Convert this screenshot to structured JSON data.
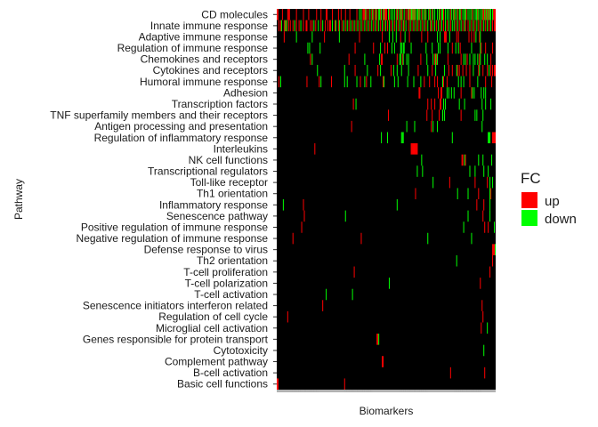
{
  "chart_data": {
    "type": "heatmap",
    "xlabel": "Biomarkers",
    "ylabel": "Pathway",
    "background_color": "#000000",
    "legend": {
      "title": "FC",
      "position": "right",
      "entries": [
        {
          "label": "up",
          "color": "#FF0000"
        },
        {
          "label": "down",
          "color": "#00FF00"
        }
      ]
    },
    "n_biomarkers": 250,
    "pathways": [
      "CD molecules",
      "Innate immune response",
      "Adaptive immune response",
      "Regulation of immune response",
      "Chemokines and receptors",
      "Cytokines and receptors",
      "Humoral immune response",
      "Adhesion",
      "Transcription factors",
      "TNF superfamily members and their receptors",
      "Antigen processing and presentation",
      "Regulation of inflammatory response",
      "Interleukins",
      "NK cell functions",
      "Transcriptional regulators",
      "Toll-like receptor",
      "Th1 orientation",
      "Inflammatory response",
      "Senescence pathway",
      "Positive regulation of immune response",
      "Negative regulation of immune response",
      "Defense response to virus",
      "Th2 orientation",
      "T-cell proliferation",
      "T-cell polarization",
      "T-cell activation",
      "Senescence initiators interferon related",
      "Regulation of cell cycle",
      "Microglial cell activation",
      "Genes responsible for protein transport",
      "Cytotoxicity",
      "Complement pathway",
      "B-cell activation",
      "Basic cell functions"
    ],
    "cells": [
      {
        "pathway": "CD molecules",
        "up": [
          0,
          1,
          6,
          12,
          13,
          14,
          22,
          30,
          36,
          45,
          50,
          56,
          57,
          63,
          70,
          73,
          78,
          83,
          91,
          98,
          99,
          100,
          102,
          104,
          108,
          110,
          112,
          114,
          118,
          121,
          123,
          124,
          125,
          128,
          136,
          138,
          141,
          143,
          147,
          149,
          151,
          152,
          155,
          157,
          162,
          165,
          169,
          174,
          177,
          186,
          190,
          198,
          202,
          206,
          210,
          216,
          223,
          229,
          235,
          236,
          238,
          240,
          242,
          247,
          248,
          249
        ],
        "down": [
          94,
          96,
          101,
          106,
          109,
          113,
          116,
          117,
          119,
          122,
          127,
          130,
          132,
          134,
          137,
          140,
          142,
          145,
          150,
          153,
          154,
          156,
          158,
          160,
          161,
          163,
          166,
          168,
          170,
          173,
          175,
          178,
          180,
          183,
          185,
          188,
          189,
          192,
          194,
          196,
          199,
          201,
          203,
          205,
          208,
          209,
          212,
          214,
          215,
          218,
          220,
          222,
          225,
          227,
          228,
          230,
          232,
          234,
          237,
          239,
          241,
          243,
          244,
          246
        ]
      },
      {
        "pathway": "Innate immune response",
        "up": [
          2,
          4,
          8,
          10,
          13,
          15,
          18,
          22,
          25,
          30,
          33,
          34,
          38,
          40,
          44,
          50,
          55,
          58,
          60,
          61,
          66,
          70,
          74,
          78,
          82,
          86,
          90,
          94,
          98,
          102,
          106,
          110,
          114,
          118,
          122,
          126,
          130,
          134,
          138,
          142,
          145,
          150,
          154,
          158,
          162,
          166,
          170,
          175,
          178,
          182,
          186,
          190,
          194,
          198,
          204,
          208,
          212,
          215,
          218,
          222,
          226,
          230,
          234,
          238,
          242,
          246,
          248,
          249
        ],
        "down": [
          5,
          9,
          11,
          20,
          27,
          42,
          47,
          52,
          63,
          67,
          71,
          76,
          80,
          84,
          88,
          92,
          96,
          100,
          104,
          108,
          112,
          116,
          120,
          124,
          128,
          132,
          136,
          140,
          144,
          147,
          152,
          156,
          160,
          164,
          168,
          172,
          176,
          180,
          184,
          188,
          192,
          196,
          200,
          202,
          206,
          210,
          214,
          220,
          224,
          228,
          232,
          236,
          240,
          244
        ]
      },
      {
        "pathway": "Adaptive immune response",
        "up": [
          8,
          54,
          94,
          120,
          141,
          151,
          165,
          172,
          191,
          192,
          193,
          205,
          207,
          219,
          222,
          225,
          231
        ],
        "down": [
          22,
          40,
          71,
          128,
          132,
          136,
          146,
          183,
          186,
          197,
          227,
          232
        ]
      },
      {
        "pathway": "Regulation of immune response",
        "up": [
          89,
          110,
          123,
          126,
          200,
          209,
          233,
          238,
          246
        ],
        "down": [
          35,
          37,
          49,
          118,
          131,
          134,
          141,
          142,
          144,
          145,
          153,
          170,
          177,
          184,
          186,
          195,
          204,
          207,
          222,
          232
        ]
      },
      {
        "pathway": "Chemokines and receptors",
        "up": [
          38,
          82,
          119,
          120,
          137,
          143,
          164,
          180,
          182,
          195,
          210,
          217,
          231,
          244
        ],
        "down": [
          40,
          100,
          117,
          140,
          141,
          144,
          148,
          150,
          171,
          178,
          181,
          183,
          213,
          215,
          220,
          224,
          226,
          229,
          232,
          237,
          240
        ]
      },
      {
        "pathway": "Cytokines and receptors",
        "up": [
          89,
          115,
          130,
          161,
          177,
          196,
          200,
          206,
          208,
          212,
          216,
          220,
          230,
          235,
          240,
          244,
          246,
          248,
          249
        ],
        "down": [
          46,
          77,
          103,
          118,
          133,
          137,
          142,
          150,
          172,
          181,
          191,
          205,
          224,
          231,
          242
        ]
      },
      {
        "pathway": "Humoral immune response",
        "up": [
          2,
          34,
          48,
          62,
          95,
          102,
          121,
          168,
          174,
          180,
          183,
          190,
          194,
          220,
          238,
          245
        ],
        "down": [
          4,
          50,
          77,
          80,
          91,
          100,
          107,
          122,
          134,
          138,
          149,
          156,
          164,
          189,
          207,
          210,
          213,
          229
        ]
      },
      {
        "pathway": "Adhesion",
        "up": [
          162,
          163,
          184,
          187,
          188,
          210,
          222
        ],
        "down": [
          194,
          196,
          199,
          202,
          223,
          225,
          233,
          236,
          238
        ]
      },
      {
        "pathway": "Transcription factors",
        "up": [
          87,
          172,
          176,
          180,
          186,
          187
        ],
        "down": [
          90,
          190,
          192,
          208,
          214,
          234,
          238,
          244
        ]
      },
      {
        "pathway": "TNF superfamily members and their receptors",
        "up": [
          127,
          171,
          177,
          185,
          189,
          210
        ],
        "down": [
          189,
          191,
          226,
          228,
          235
        ]
      },
      {
        "pathway": "Antigen processing and presentation",
        "up": [
          85,
          176
        ],
        "down": [
          148,
          157,
          178,
          183,
          234
        ]
      },
      {
        "pathway": "Regulation of inflammatory response",
        "up": [
          246,
          247,
          248,
          249
        ],
        "down": [
          119,
          126,
          142,
          143,
          144,
          200,
          241,
          242,
          243
        ]
      },
      {
        "pathway": "Interleukins",
        "up": [
          43,
          153,
          154,
          155,
          156,
          157,
          158,
          159,
          160
        ],
        "down": []
      },
      {
        "pathway": "NK cell functions",
        "up": [
          211,
          212,
          215
        ],
        "down": [
          165,
          214,
          230,
          235,
          245
        ]
      },
      {
        "pathway": "Transcriptional regulators",
        "up": [],
        "down": [
          160,
          166,
          220,
          226,
          236,
          241
        ]
      },
      {
        "pathway": "Toll-like receptor",
        "up": [
          197,
          226,
          240
        ],
        "down": [
          178,
          243,
          246
        ]
      },
      {
        "pathway": "Th1 orientation",
        "up": [
          158,
          230,
          244
        ],
        "down": [
          206,
          218,
          243
        ]
      },
      {
        "pathway": "Inflammatory response",
        "up": [
          30,
          228,
          236
        ],
        "down": [
          7,
          137,
          243
        ]
      },
      {
        "pathway": "Senescence pathway",
        "up": [
          31,
          235
        ],
        "down": [
          78,
          218,
          243
        ]
      },
      {
        "pathway": "Positive regulation of immune response",
        "up": [
          28,
          237,
          241
        ],
        "down": [
          213,
          248
        ]
      },
      {
        "pathway": "Negative regulation of immune response",
        "up": [
          18,
          96
        ],
        "down": [
          172,
          222
        ]
      },
      {
        "pathway": "Defense response to virus",
        "up": [
          246,
          247,
          248
        ],
        "down": [
          249
        ]
      },
      {
        "pathway": "Th2 orientation",
        "up": [
          246
        ],
        "down": [
          205
        ]
      },
      {
        "pathway": "T-cell proliferation",
        "up": [
          88,
          243
        ],
        "down": []
      },
      {
        "pathway": "T-cell polarization",
        "up": [
          232
        ],
        "down": [
          128
        ]
      },
      {
        "pathway": "T-cell activation",
        "up": [],
        "down": [
          56,
          86
        ]
      },
      {
        "pathway": "Senescence initiators interferon related",
        "up": [
          52,
          234
        ],
        "down": []
      },
      {
        "pathway": "Regulation of cell cycle",
        "up": [
          12,
          235
        ],
        "down": []
      },
      {
        "pathway": "Microglial cell activation",
        "up": [
          233
        ],
        "down": [
          240
        ]
      },
      {
        "pathway": "Genes responsible for protein transport",
        "up": [
          114,
          115
        ],
        "down": [
          116
        ]
      },
      {
        "pathway": "Cytotoxicity",
        "up": [],
        "down": [
          236
        ]
      },
      {
        "pathway": "Complement pathway",
        "up": [
          120,
          121
        ],
        "down": []
      },
      {
        "pathway": "B-cell activation",
        "up": [
          198,
          237
        ],
        "down": []
      },
      {
        "pathway": "Basic cell functions",
        "up": [
          0,
          1,
          77
        ],
        "down": []
      }
    ]
  }
}
